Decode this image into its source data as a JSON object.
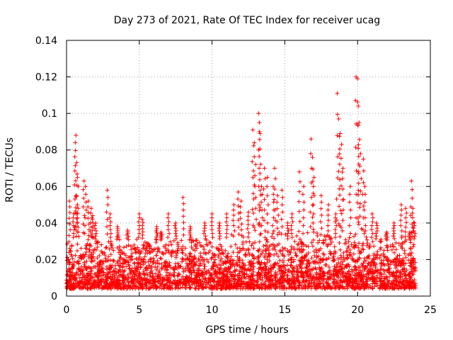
{
  "chart_data": {
    "type": "scatter",
    "title": "Day 273 of 2021, Rate Of TEC Index for receiver ucag",
    "xlabel": "GPS time / hours",
    "ylabel": "ROTI / TECUs",
    "xlim": [
      0,
      25
    ],
    "ylim": [
      0,
      0.14
    ],
    "xticks": [
      0,
      5,
      10,
      15,
      20,
      25
    ],
    "yticks": [
      0,
      0.02,
      0.04,
      0.06,
      0.08,
      0.1,
      0.12,
      0.14
    ],
    "xtick_labels": [
      "0",
      "5",
      "10",
      "15",
      "20",
      "25"
    ],
    "ytick_labels": [
      "0",
      "0.02",
      "0.04",
      "0.06",
      "0.08",
      "0.1",
      "0.12",
      "0.14"
    ],
    "grid": true,
    "marker": "+",
    "color": "#ff0000",
    "data_gap_hours": [
      21.4,
      21.5
    ],
    "series": [
      {
        "name": "ROTI",
        "x": [
          0.2,
          0.5,
          0.6,
          0.65,
          0.7,
          0.75,
          0.8,
          1.2,
          1.3,
          1.5,
          1.7,
          1.8,
          2.0,
          2.8,
          3.0,
          3.5,
          4.2,
          5.0,
          5.2,
          6.2,
          6.5,
          7.0,
          7.5,
          8.0,
          8.5,
          9.5,
          10.0,
          10.5,
          11.0,
          11.5,
          11.8,
          12.0,
          12.5,
          12.8,
          12.9,
          13.0,
          13.2,
          13.25,
          13.3,
          13.4,
          13.6,
          13.8,
          14.2,
          14.3,
          14.5,
          14.8,
          15.2,
          15.5,
          16.0,
          16.3,
          16.8,
          16.9,
          17.0,
          17.5,
          18.0,
          18.5,
          18.6,
          18.7,
          18.8,
          18.9,
          19.0,
          19.5,
          19.9,
          20.0,
          20.05,
          20.1,
          20.2,
          20.4,
          20.5,
          21.0,
          21.3,
          21.6,
          22.0,
          22.5,
          23.0,
          23.3,
          23.6,
          23.7,
          23.8,
          23.9
        ],
        "y": [
          0.052,
          0.045,
          0.084,
          0.088,
          0.073,
          0.065,
          0.048,
          0.063,
          0.06,
          0.052,
          0.048,
          0.044,
          0.04,
          0.058,
          0.045,
          0.038,
          0.036,
          0.045,
          0.042,
          0.038,
          0.035,
          0.045,
          0.04,
          0.054,
          0.038,
          0.04,
          0.045,
          0.04,
          0.045,
          0.05,
          0.057,
          0.052,
          0.046,
          0.091,
          0.084,
          0.072,
          0.1,
          0.095,
          0.089,
          0.06,
          0.07,
          0.065,
          0.06,
          0.07,
          0.055,
          0.058,
          0.04,
          0.045,
          0.068,
          0.06,
          0.086,
          0.076,
          0.065,
          0.055,
          0.05,
          0.045,
          0.111,
          0.097,
          0.089,
          0.083,
          0.07,
          0.06,
          0.12,
          0.119,
          0.104,
          0.095,
          0.078,
          0.075,
          0.06,
          0.045,
          0.04,
          0.03,
          0.035,
          0.04,
          0.05,
          0.048,
          0.035,
          0.063,
          0.048,
          0.04
        ]
      }
    ]
  }
}
